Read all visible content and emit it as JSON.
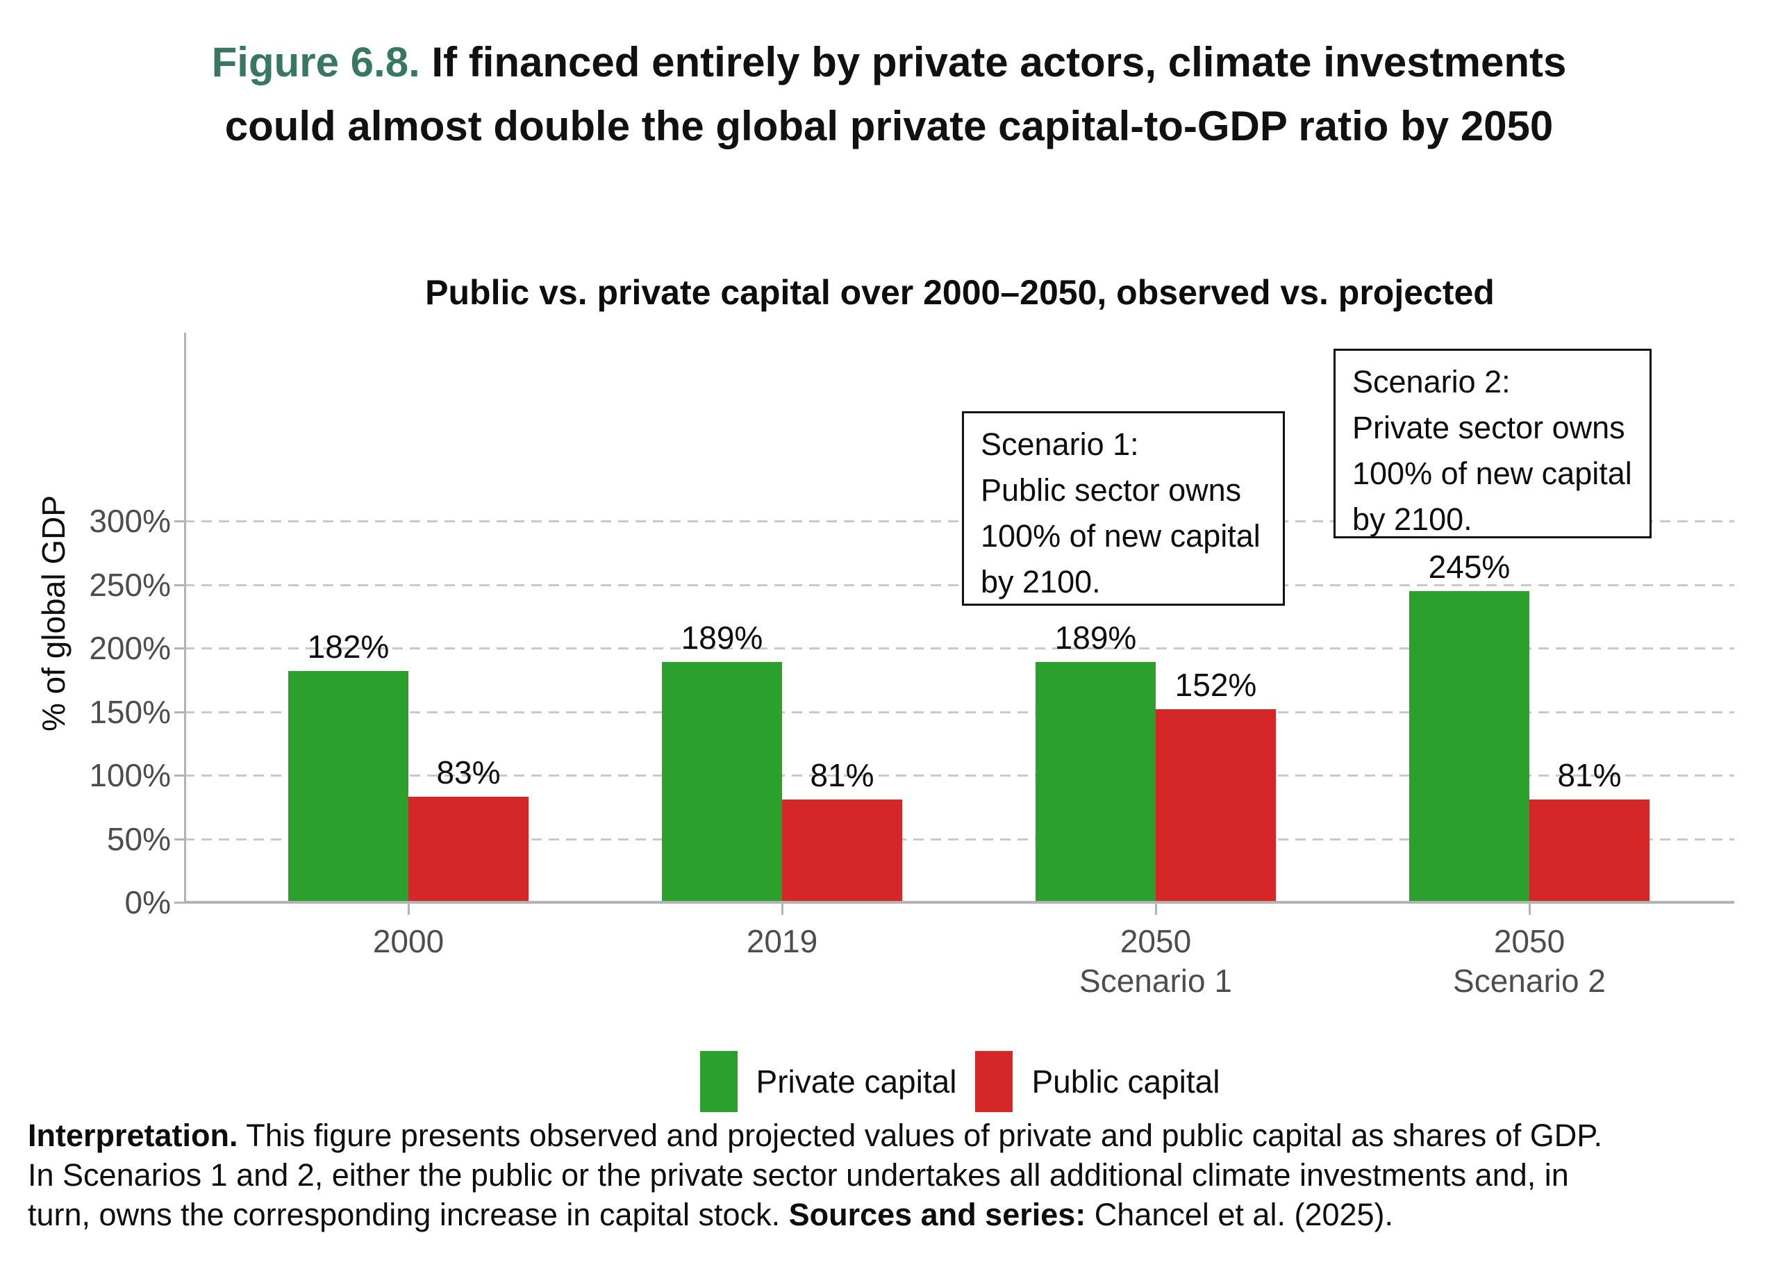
{
  "figure_title": {
    "label": "Figure 6.8.",
    "line1_rest": " If financed entirely by private actors, climate investments",
    "line2": "could almost double the global private capital-to-GDP ratio by 2050"
  },
  "chart_data": {
    "type": "bar",
    "title": "Public vs. private capital over 2000–2050, observed vs. projected",
    "xlabel": "",
    "ylabel": "% of global GDP",
    "categories": [
      "2000",
      "2019",
      "2050 Scenario 1",
      "2050 Scenario 2"
    ],
    "category_labels": [
      [
        "2000"
      ],
      [
        "2019"
      ],
      [
        "2050",
        "Scenario 1"
      ],
      [
        "2050",
        "Scenario 2"
      ]
    ],
    "series": [
      {
        "name": "Private capital",
        "color": "#2ca02c",
        "values": [
          182,
          189,
          189,
          245
        ],
        "labels": [
          "182%",
          "189%",
          "189%",
          "245%"
        ]
      },
      {
        "name": "Public capital",
        "color": "#d62728",
        "values": [
          83,
          81,
          152,
          81
        ],
        "labels": [
          "83%",
          "81%",
          "152%",
          "81%"
        ]
      }
    ],
    "ylim": [
      0,
      450
    ],
    "ytick_values": [
      0,
      50,
      100,
      150,
      200,
      250,
      300
    ],
    "ytick_labels": [
      "0%",
      "50%",
      "100%",
      "150%",
      "200%",
      "250%",
      "300%"
    ],
    "grid": "horizontal dashed, 50% steps, behind bars",
    "legend_position": "bottom center",
    "annotations": [
      {
        "lines": [
          "Scenario 1:",
          "Public sector owns",
          "100% of new capital",
          "by 2100."
        ]
      },
      {
        "lines": [
          "Scenario 2:",
          "Private sector owns",
          "100% of new capital",
          "by 2100."
        ]
      }
    ]
  },
  "legend": {
    "items": [
      {
        "label": "Private capital",
        "color": "#2ca02c"
      },
      {
        "label": "Public capital",
        "color": "#d62728"
      }
    ]
  },
  "footer": {
    "interpretation_label": "Interpretation.",
    "line1_rest": " This figure presents observed and projected values of private and public capital as shares of GDP.",
    "line2": "In Scenarios 1 and 2, either the public or the private sector undertakes all additional climate investments and, in",
    "line3_start": "turn, owns the corresponding increase in capital stock. ",
    "sources_label": "Sources and series:",
    "line3_end": " Chancel et al. (2025)."
  },
  "colors": {
    "title_accent_green": "#37785f",
    "bar_green": "#2ca02c",
    "bar_red": "#d62728",
    "axis_gray": "#b3b3b3",
    "grid_gray": "#c9c9c9",
    "tick_label_gray": "#4d4d4d",
    "text_black": "#111111"
  }
}
